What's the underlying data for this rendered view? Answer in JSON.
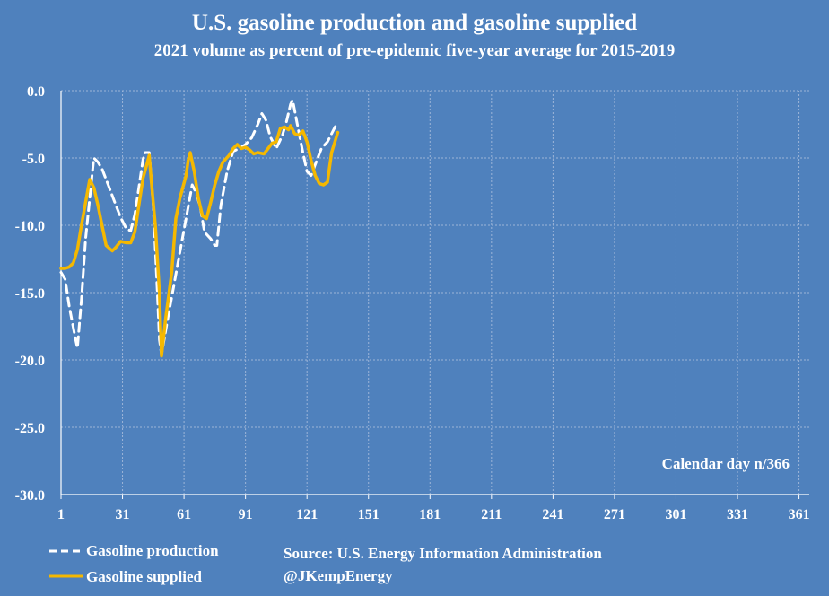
{
  "chart_data": {
    "type": "line",
    "title": "U.S. gasoline production and gasoline supplied",
    "subtitle": "2021 volume as percent of pre-epidemic five-year average for 2015-2019",
    "xlabel": "Calendar day n/366",
    "ylabel": "",
    "xlim": [
      1,
      366
    ],
    "ylim": [
      -30,
      0
    ],
    "x_ticks": [
      1,
      31,
      61,
      91,
      121,
      151,
      181,
      211,
      241,
      271,
      301,
      331,
      361
    ],
    "y_ticks": [
      0,
      -5,
      -10,
      -15,
      -20,
      -25,
      -30
    ],
    "y_tick_labels": [
      "0.0",
      "-5.0",
      "-10.0",
      "-15.0",
      "-20.0",
      "-25.0",
      "-30.0"
    ],
    "grid": true,
    "legend_position": "bottom-left",
    "series": [
      {
        "name": "Gasoline production",
        "color": "#ffffff",
        "dash": "dashed",
        "points": [
          [
            1,
            -13.5
          ],
          [
            3,
            -14
          ],
          [
            5,
            -16
          ],
          [
            8,
            -18.4
          ],
          [
            9,
            -19.1
          ],
          [
            11,
            -15.5
          ],
          [
            13,
            -11
          ],
          [
            16,
            -6.5
          ],
          [
            17,
            -5.0
          ],
          [
            19,
            -5.3
          ],
          [
            21,
            -5.8
          ],
          [
            24,
            -7.0
          ],
          [
            27,
            -8.2
          ],
          [
            30,
            -9.4
          ],
          [
            33,
            -10.3
          ],
          [
            35,
            -10.4
          ],
          [
            37,
            -9.2
          ],
          [
            39,
            -7.2
          ],
          [
            41,
            -5.1
          ],
          [
            42,
            -4.6
          ],
          [
            44,
            -4.6
          ],
          [
            46,
            -8.5
          ],
          [
            48,
            -15
          ],
          [
            49,
            -18.5
          ],
          [
            50,
            -19.6
          ],
          [
            53,
            -17.0
          ],
          [
            56,
            -14.5
          ],
          [
            59,
            -12.0
          ],
          [
            62,
            -9.5
          ],
          [
            65,
            -7.0
          ],
          [
            67,
            -7.6
          ],
          [
            69,
            -8.7
          ],
          [
            71,
            -10.5
          ],
          [
            74,
            -11.0
          ],
          [
            76,
            -11.5
          ],
          [
            77,
            -11.5
          ],
          [
            79,
            -8.5
          ],
          [
            82,
            -6.0
          ],
          [
            85,
            -4.5
          ],
          [
            88,
            -4.3
          ],
          [
            91,
            -4.0
          ],
          [
            94,
            -3.5
          ],
          [
            97,
            -2.5
          ],
          [
            99,
            -1.7
          ],
          [
            101,
            -2.2
          ],
          [
            103,
            -3.4
          ],
          [
            106,
            -4.3
          ],
          [
            109,
            -3.3
          ],
          [
            111,
            -2.3
          ],
          [
            113,
            -1.0
          ],
          [
            114,
            -0.7
          ],
          [
            116,
            -2.3
          ],
          [
            119,
            -4.6
          ],
          [
            121,
            -6.0
          ],
          [
            123,
            -6.3
          ],
          [
            125,
            -5.5
          ],
          [
            128,
            -4.3
          ],
          [
            131,
            -3.8
          ],
          [
            133,
            -3.2
          ],
          [
            135,
            -2.6
          ]
        ]
      },
      {
        "name": "Gasoline supplied",
        "color": "#f5b800",
        "dash": "solid",
        "points": [
          [
            1,
            -13.2
          ],
          [
            3,
            -13.2
          ],
          [
            5,
            -13.1
          ],
          [
            7,
            -12.8
          ],
          [
            9,
            -11.8
          ],
          [
            11,
            -10.0
          ],
          [
            13,
            -8.3
          ],
          [
            15,
            -6.6
          ],
          [
            17,
            -7.2
          ],
          [
            19,
            -8.5
          ],
          [
            21,
            -10.0
          ],
          [
            23,
            -11.5
          ],
          [
            26,
            -11.9
          ],
          [
            28,
            -11.6
          ],
          [
            30,
            -11.2
          ],
          [
            33,
            -11.3
          ],
          [
            35,
            -11.3
          ],
          [
            37,
            -10.5
          ],
          [
            39,
            -8.5
          ],
          [
            41,
            -6.5
          ],
          [
            43,
            -5.4
          ],
          [
            44,
            -4.8
          ],
          [
            45,
            -6.6
          ],
          [
            47,
            -10.0
          ],
          [
            49,
            -15.0
          ],
          [
            50,
            -19.7
          ],
          [
            52,
            -17.0
          ],
          [
            55,
            -13.5
          ],
          [
            57,
            -9.5
          ],
          [
            59,
            -8.0
          ],
          [
            62,
            -6.3
          ],
          [
            63,
            -5.2
          ],
          [
            64,
            -4.6
          ],
          [
            66,
            -6.0
          ],
          [
            68,
            -8.0
          ],
          [
            70,
            -9.3
          ],
          [
            72,
            -9.5
          ],
          [
            74,
            -8.3
          ],
          [
            76,
            -7.0
          ],
          [
            78,
            -6.0
          ],
          [
            80,
            -5.3
          ],
          [
            83,
            -4.8
          ],
          [
            85,
            -4.3
          ],
          [
            87,
            -4.0
          ],
          [
            89,
            -4.3
          ],
          [
            91,
            -4.2
          ],
          [
            93,
            -4.4
          ],
          [
            95,
            -4.7
          ],
          [
            97,
            -4.6
          ],
          [
            100,
            -4.7
          ],
          [
            102,
            -4.3
          ],
          [
            104,
            -3.9
          ],
          [
            106,
            -3.8
          ],
          [
            108,
            -2.8
          ],
          [
            110,
            -2.7
          ],
          [
            112,
            -2.9
          ],
          [
            113,
            -2.6
          ],
          [
            115,
            -3.2
          ],
          [
            117,
            -3.3
          ],
          [
            119,
            -3.0
          ],
          [
            121,
            -3.8
          ],
          [
            123,
            -5.2
          ],
          [
            125,
            -6.3
          ],
          [
            127,
            -6.9
          ],
          [
            129,
            -7.0
          ],
          [
            131,
            -6.8
          ],
          [
            133,
            -4.6
          ],
          [
            135,
            -3.6
          ],
          [
            136,
            -3.1
          ]
        ]
      }
    ],
    "source": "Source: U.S. Energy Information Administration",
    "credit": "@JKempEnergy"
  }
}
